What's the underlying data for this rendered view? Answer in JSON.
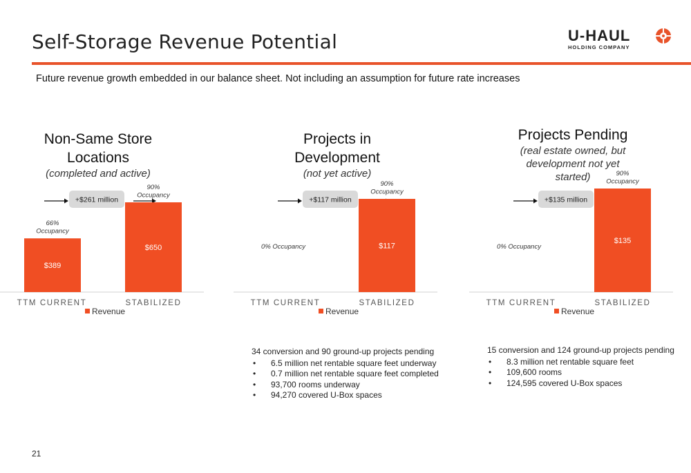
{
  "header": {
    "title": "Self-Storage Revenue Potential",
    "subtitle": "Future revenue growth embedded in our balance sheet.  Not including an assumption for future rate increases"
  },
  "logo": {
    "main": "U-HAUL",
    "sub": "HOLDING COMPANY"
  },
  "colors": {
    "accent": "#e8532a",
    "bar": "#f04e23",
    "pill": "#d9d9d9",
    "axis": "#d0d0d0"
  },
  "chart_data": [
    {
      "type": "bar",
      "panel_title": "Non-Same Store Locations",
      "panel_subtitle": "(completed and active)",
      "categories": [
        "TTM CURRENT",
        "STABILIZED"
      ],
      "series": [
        {
          "name": "Revenue",
          "values": [
            389,
            650
          ]
        }
      ],
      "data_labels": [
        "$389",
        "$650"
      ],
      "occupancy_labels": [
        "66% Occupancy",
        "90% Occupancy"
      ],
      "delta_label": "+$261 million",
      "ylim": [
        0,
        750
      ],
      "legend": "bottom"
    },
    {
      "type": "bar",
      "panel_title": "Projects in Development",
      "panel_subtitle": "(not yet active)",
      "categories": [
        "TTM CURRENT",
        "STABILIZED"
      ],
      "series": [
        {
          "name": "Revenue",
          "values": [
            0,
            117
          ]
        }
      ],
      "data_labels": [
        "",
        "$117"
      ],
      "occupancy_labels": [
        "0% Occupancy",
        "90% Occupancy"
      ],
      "delta_label": "+$117 million",
      "ylim": [
        0,
        130
      ],
      "legend": "bottom"
    },
    {
      "type": "bar",
      "panel_title": "Projects Pending",
      "panel_subtitle": "(real estate owned, but development not yet started)",
      "categories": [
        "TTM CURRENT",
        "STABILIZED"
      ],
      "series": [
        {
          "name": "Revenue",
          "values": [
            0,
            135
          ]
        }
      ],
      "data_labels": [
        "",
        "$135"
      ],
      "occupancy_labels": [
        "0% Occupancy",
        "90% Occupancy"
      ],
      "delta_label": "+$135 million",
      "ylim": [
        0,
        135
      ],
      "legend": "bottom"
    }
  ],
  "notes": {
    "development": {
      "lead": "34 conversion and 90 ground-up projects pending",
      "items": [
        "6.5 million net rentable square feet underway",
        "0.7 million net rentable square feet completed",
        "93,700 rooms underway",
        "94,270 covered U-Box spaces"
      ]
    },
    "pending": {
      "lead": "15 conversion and 124 ground-up projects pending",
      "items": [
        "8.3 million net rentable square feet",
        "109,600 rooms",
        "124,595 covered U-Box spaces"
      ]
    }
  },
  "page_number": "21"
}
